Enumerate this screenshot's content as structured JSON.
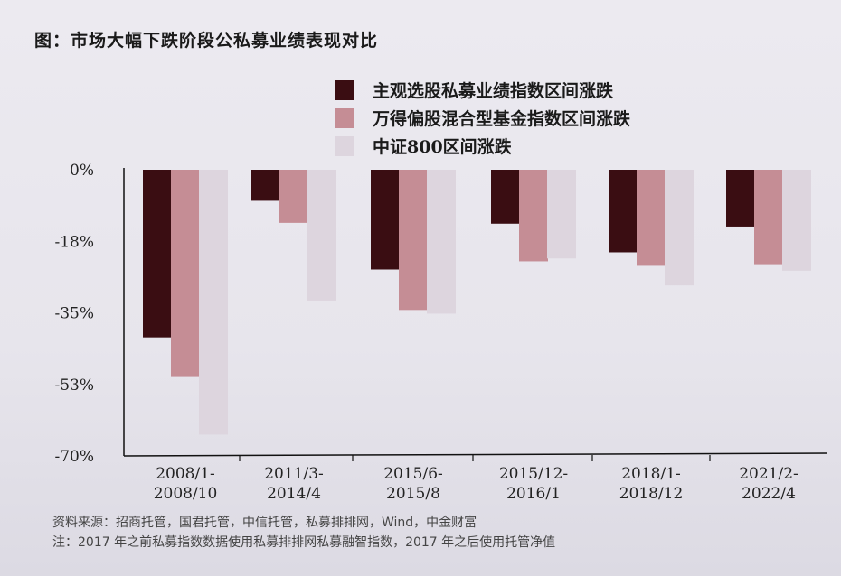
{
  "title": "图：市场大幅下跌阶段公私募业绩表现对比",
  "footnotes": {
    "source": "资料来源：招商托管，国君托管，中信托管，私募排排网，Wind，中金财富",
    "note": "注：2017 年之前私募指数数据使用私募排排网私募融智指数，2017 年之后使用托管净值"
  },
  "chart_data": {
    "type": "bar",
    "title": "市场大幅下跌阶段公私募业绩表现对比",
    "categories": [
      [
        "2008/1-",
        "2008/10"
      ],
      [
        "2011/3-",
        "2014/4"
      ],
      [
        "2015/6-",
        "2015/8"
      ],
      [
        "2015/12-",
        "2016/1"
      ],
      [
        "2018/1-",
        "2018/12"
      ],
      [
        "2021/2-",
        "2022/4"
      ]
    ],
    "series": [
      {
        "name": "主观选股私募业绩指数区间涨跌",
        "color": "#3a0d12",
        "values": [
          -41.0,
          -7.6,
          -24.4,
          -13.2,
          -20.2,
          -13.9
        ]
      },
      {
        "name": "万得偏股混合型基金指数区间涨跌",
        "color": "#c58d95",
        "values": [
          -50.7,
          -13.0,
          -34.3,
          -22.4,
          -23.5,
          -23.1
        ]
      },
      {
        "name": "中证800区间涨跌",
        "color": "#ddd5de",
        "values": [
          -64.8,
          -32.0,
          -35.2,
          -21.7,
          -28.3,
          -24.7
        ]
      }
    ],
    "yticks": [
      0,
      -17.5,
      -35,
      -52.5,
      -70
    ],
    "ytick_labels": [
      "0%",
      "-18%",
      "-35%",
      "-53%",
      "-70%"
    ],
    "ylim": [
      -70,
      0
    ],
    "legend": "top-right",
    "grid": false
  }
}
